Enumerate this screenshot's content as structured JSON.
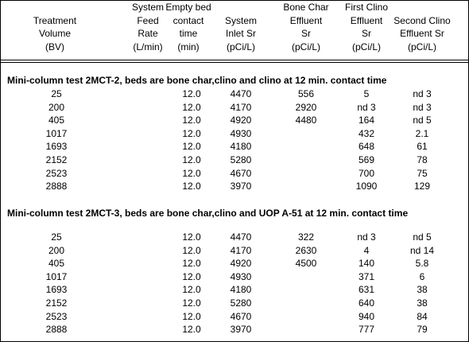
{
  "header": {
    "columns": [
      [
        "Treatment",
        "Volume",
        "(BV)"
      ],
      [
        "System",
        "Feed",
        "Rate",
        "(L/min)"
      ],
      [
        "Empty bed",
        "contact",
        "time",
        "(min)"
      ],
      [
        "System",
        "Inlet Sr",
        "(pCi/L)"
      ],
      [
        "Bone Char",
        "Effluent",
        "Sr",
        "(pCi/L)"
      ],
      [
        "First Clino",
        "Effluent",
        "Sr",
        "(pCi/L)"
      ],
      [
        "Second Clino",
        "Effluent Sr",
        "(pCi/L)"
      ]
    ]
  },
  "sections": [
    {
      "title": "Mini-column test  2MCT-2, beds are bone char,clino and clino at 12 min. contact time",
      "rows": [
        [
          "25",
          null,
          "12.0",
          "4470",
          "556",
          "5",
          "nd 3"
        ],
        [
          "200",
          null,
          "12.0",
          "4170",
          "2920",
          "nd 3",
          "nd 3"
        ],
        [
          "405",
          null,
          "12.0",
          "4920",
          "4480",
          "164",
          "nd 5"
        ],
        [
          "1017",
          null,
          "12.0",
          "4930",
          null,
          "432",
          "2.1"
        ],
        [
          "1693",
          null,
          "12.0",
          "4180",
          null,
          "648",
          "61"
        ],
        [
          "2152",
          null,
          "12.0",
          "5280",
          null,
          "569",
          "78"
        ],
        [
          "2523",
          null,
          "12.0",
          "4670",
          null,
          "700",
          "75"
        ],
        [
          "2888",
          null,
          "12.0",
          "3970",
          null,
          "1090",
          "129"
        ]
      ]
    },
    {
      "title": "Mini-column test  2MCT-3, beds are bone char,clino and UOP A-51 at 12 min. contact time",
      "rows": [
        [
          "25",
          null,
          "12.0",
          "4470",
          "322",
          "nd 3",
          "nd 5"
        ],
        [
          "200",
          null,
          "12.0",
          "4170",
          "2630",
          "4",
          "nd 14"
        ],
        [
          "405",
          null,
          "12.0",
          "4920",
          "4500",
          "140",
          "5.8"
        ],
        [
          "1017",
          null,
          "12.0",
          "4930",
          null,
          "371",
          "6"
        ],
        [
          "1693",
          null,
          "12.0",
          "4180",
          null,
          "631",
          "38"
        ],
        [
          "2152",
          null,
          "12.0",
          "5280",
          null,
          "640",
          "38"
        ],
        [
          "2523",
          null,
          "12.0",
          "4670",
          null,
          "940",
          "84"
        ],
        [
          "2888",
          null,
          "12.0",
          "3970",
          null,
          "777",
          "79"
        ]
      ]
    }
  ]
}
